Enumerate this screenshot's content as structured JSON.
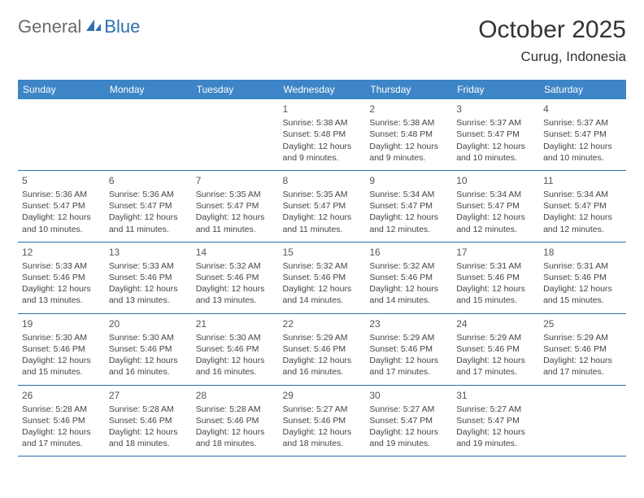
{
  "logo": {
    "part1": "General",
    "part2": "Blue"
  },
  "title": "October 2025",
  "location": "Curug, Indonesia",
  "colors": {
    "header_bg": "#3d85c6",
    "header_text": "#ffffff",
    "border": "#2e6fb0",
    "title": "#333333",
    "logo_gray": "#6a6a6a",
    "logo_blue": "#2e6fb0"
  },
  "weekdays": [
    "Sunday",
    "Monday",
    "Tuesday",
    "Wednesday",
    "Thursday",
    "Friday",
    "Saturday"
  ],
  "weeks": [
    [
      null,
      null,
      null,
      {
        "n": "1",
        "sr": "5:38 AM",
        "ss": "5:48 PM",
        "dl": "12 hours and 9 minutes."
      },
      {
        "n": "2",
        "sr": "5:38 AM",
        "ss": "5:48 PM",
        "dl": "12 hours and 9 minutes."
      },
      {
        "n": "3",
        "sr": "5:37 AM",
        "ss": "5:47 PM",
        "dl": "12 hours and 10 minutes."
      },
      {
        "n": "4",
        "sr": "5:37 AM",
        "ss": "5:47 PM",
        "dl": "12 hours and 10 minutes."
      }
    ],
    [
      {
        "n": "5",
        "sr": "5:36 AM",
        "ss": "5:47 PM",
        "dl": "12 hours and 10 minutes."
      },
      {
        "n": "6",
        "sr": "5:36 AM",
        "ss": "5:47 PM",
        "dl": "12 hours and 11 minutes."
      },
      {
        "n": "7",
        "sr": "5:35 AM",
        "ss": "5:47 PM",
        "dl": "12 hours and 11 minutes."
      },
      {
        "n": "8",
        "sr": "5:35 AM",
        "ss": "5:47 PM",
        "dl": "12 hours and 11 minutes."
      },
      {
        "n": "9",
        "sr": "5:34 AM",
        "ss": "5:47 PM",
        "dl": "12 hours and 12 minutes."
      },
      {
        "n": "10",
        "sr": "5:34 AM",
        "ss": "5:47 PM",
        "dl": "12 hours and 12 minutes."
      },
      {
        "n": "11",
        "sr": "5:34 AM",
        "ss": "5:47 PM",
        "dl": "12 hours and 12 minutes."
      }
    ],
    [
      {
        "n": "12",
        "sr": "5:33 AM",
        "ss": "5:46 PM",
        "dl": "12 hours and 13 minutes."
      },
      {
        "n": "13",
        "sr": "5:33 AM",
        "ss": "5:46 PM",
        "dl": "12 hours and 13 minutes."
      },
      {
        "n": "14",
        "sr": "5:32 AM",
        "ss": "5:46 PM",
        "dl": "12 hours and 13 minutes."
      },
      {
        "n": "15",
        "sr": "5:32 AM",
        "ss": "5:46 PM",
        "dl": "12 hours and 14 minutes."
      },
      {
        "n": "16",
        "sr": "5:32 AM",
        "ss": "5:46 PM",
        "dl": "12 hours and 14 minutes."
      },
      {
        "n": "17",
        "sr": "5:31 AM",
        "ss": "5:46 PM",
        "dl": "12 hours and 15 minutes."
      },
      {
        "n": "18",
        "sr": "5:31 AM",
        "ss": "5:46 PM",
        "dl": "12 hours and 15 minutes."
      }
    ],
    [
      {
        "n": "19",
        "sr": "5:30 AM",
        "ss": "5:46 PM",
        "dl": "12 hours and 15 minutes."
      },
      {
        "n": "20",
        "sr": "5:30 AM",
        "ss": "5:46 PM",
        "dl": "12 hours and 16 minutes."
      },
      {
        "n": "21",
        "sr": "5:30 AM",
        "ss": "5:46 PM",
        "dl": "12 hours and 16 minutes."
      },
      {
        "n": "22",
        "sr": "5:29 AM",
        "ss": "5:46 PM",
        "dl": "12 hours and 16 minutes."
      },
      {
        "n": "23",
        "sr": "5:29 AM",
        "ss": "5:46 PM",
        "dl": "12 hours and 17 minutes."
      },
      {
        "n": "24",
        "sr": "5:29 AM",
        "ss": "5:46 PM",
        "dl": "12 hours and 17 minutes."
      },
      {
        "n": "25",
        "sr": "5:29 AM",
        "ss": "5:46 PM",
        "dl": "12 hours and 17 minutes."
      }
    ],
    [
      {
        "n": "26",
        "sr": "5:28 AM",
        "ss": "5:46 PM",
        "dl": "12 hours and 17 minutes."
      },
      {
        "n": "27",
        "sr": "5:28 AM",
        "ss": "5:46 PM",
        "dl": "12 hours and 18 minutes."
      },
      {
        "n": "28",
        "sr": "5:28 AM",
        "ss": "5:46 PM",
        "dl": "12 hours and 18 minutes."
      },
      {
        "n": "29",
        "sr": "5:27 AM",
        "ss": "5:46 PM",
        "dl": "12 hours and 18 minutes."
      },
      {
        "n": "30",
        "sr": "5:27 AM",
        "ss": "5:47 PM",
        "dl": "12 hours and 19 minutes."
      },
      {
        "n": "31",
        "sr": "5:27 AM",
        "ss": "5:47 PM",
        "dl": "12 hours and 19 minutes."
      },
      null
    ]
  ],
  "labels": {
    "sunrise": "Sunrise: ",
    "sunset": "Sunset: ",
    "daylight": "Daylight: "
  }
}
